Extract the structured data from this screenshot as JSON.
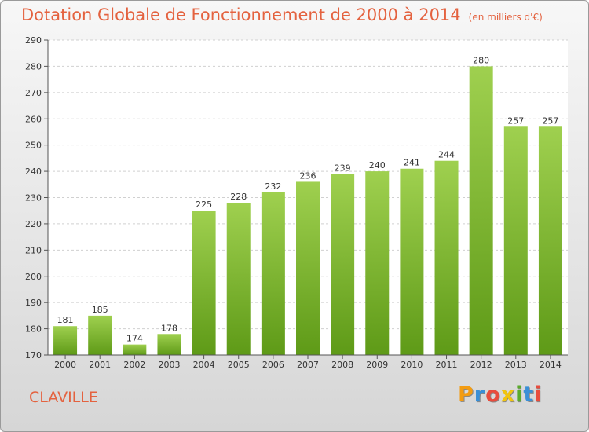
{
  "header": {
    "title": "Dotation Globale de Fonctionnement de 2000 à 2014",
    "subtitle": "(en milliers d'€)"
  },
  "commune": "CLAVILLE",
  "logo": {
    "text": "Proxiti",
    "colors": [
      "#f39c12",
      "#3a8fd6",
      "#e84c3d",
      "#f1c40f",
      "#5aab2b",
      "#3a8fd6",
      "#e84c3d"
    ]
  },
  "chart_data": {
    "type": "bar",
    "title": "Dotation Globale de Fonctionnement de 2000 à 2014",
    "subtitle": "(en milliers d'€)",
    "categories": [
      "2000",
      "2001",
      "2002",
      "2003",
      "2004",
      "2005",
      "2006",
      "2007",
      "2008",
      "2009",
      "2010",
      "2011",
      "2012",
      "2013",
      "2014"
    ],
    "values": [
      181,
      185,
      174,
      178,
      225,
      228,
      232,
      236,
      239,
      240,
      241,
      244,
      280,
      257,
      257
    ],
    "ylim": [
      170,
      290
    ],
    "yticks": [
      170,
      180,
      190,
      200,
      210,
      220,
      230,
      240,
      250,
      260,
      270,
      280,
      290
    ],
    "grid": true,
    "bar_color_top": "#9fd04f",
    "bar_color_bottom": "#5e9a17",
    "grid_color": "#d0d0d0"
  }
}
